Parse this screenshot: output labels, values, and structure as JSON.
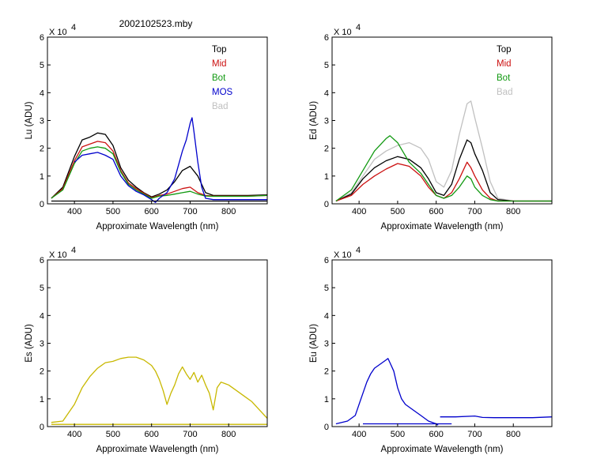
{
  "title": "2002102523.mby",
  "chart_data": [
    {
      "id": "lu",
      "type": "line",
      "ylabel": "Lu (ADU)",
      "xlabel": "Approximate Wavelength (nm)",
      "exponent_base": "X 10",
      "exponent_power": "4",
      "xlim": [
        330,
        900
      ],
      "ylim": [
        0,
        6
      ],
      "xticks": [
        "400",
        "500",
        "600",
        "700",
        "800"
      ],
      "yticks": [
        "0",
        "1",
        "2",
        "3",
        "4",
        "5",
        "6"
      ],
      "legend": [
        {
          "label": "Top",
          "color": "#000000"
        },
        {
          "label": "Mid",
          "color": "#cc1111"
        },
        {
          "label": "Bot",
          "color": "#119911"
        },
        {
          "label": "MOS",
          "color": "#0000cc"
        },
        {
          "label": "Bad",
          "color": "#c0c0c0"
        }
      ],
      "series": [
        {
          "name": "Top",
          "color": "#000000",
          "x": [
            340,
            370,
            400,
            420,
            440,
            460,
            480,
            500,
            520,
            540,
            560,
            580,
            600,
            620,
            640,
            660,
            680,
            700,
            720,
            740,
            760,
            800,
            850,
            900
          ],
          "y": [
            0.2,
            0.6,
            1.7,
            2.3,
            2.4,
            2.55,
            2.5,
            2.1,
            1.3,
            0.85,
            0.6,
            0.4,
            0.25,
            0.35,
            0.5,
            0.8,
            1.2,
            1.35,
            1.0,
            0.4,
            0.3,
            0.3,
            0.3,
            0.32
          ]
        },
        {
          "name": "Mid",
          "color": "#cc1111",
          "x": [
            340,
            370,
            400,
            420,
            440,
            460,
            480,
            500,
            520,
            540,
            560,
            580,
            600,
            620,
            640,
            660,
            680,
            700,
            720,
            740,
            760,
            800,
            850,
            900
          ],
          "y": [
            0.2,
            0.55,
            1.55,
            2.05,
            2.15,
            2.25,
            2.2,
            1.9,
            1.2,
            0.75,
            0.55,
            0.38,
            0.22,
            0.3,
            0.35,
            0.45,
            0.55,
            0.6,
            0.4,
            0.3,
            0.28,
            0.28,
            0.28,
            0.3
          ]
        },
        {
          "name": "Bot",
          "color": "#119911",
          "x": [
            340,
            370,
            400,
            420,
            440,
            460,
            480,
            500,
            520,
            540,
            560,
            580,
            600,
            620,
            640,
            660,
            680,
            700,
            720,
            740,
            760,
            800,
            850,
            900
          ],
          "y": [
            0.2,
            0.5,
            1.45,
            1.9,
            2.0,
            2.05,
            2.0,
            1.8,
            1.15,
            0.7,
            0.5,
            0.35,
            0.2,
            0.28,
            0.3,
            0.35,
            0.4,
            0.45,
            0.35,
            0.28,
            0.27,
            0.27,
            0.27,
            0.3
          ]
        },
        {
          "name": "MOS",
          "color": "#0000cc",
          "x": [
            400,
            420,
            440,
            460,
            480,
            500,
            520,
            540,
            560,
            580,
            600,
            610,
            620,
            640,
            660,
            670,
            680,
            690,
            700,
            705,
            710,
            720,
            730,
            740,
            760,
            800,
            850,
            900
          ],
          "y": [
            1.5,
            1.75,
            1.8,
            1.85,
            1.75,
            1.6,
            1.0,
            0.65,
            0.45,
            0.32,
            0.15,
            0.05,
            0.2,
            0.4,
            0.9,
            1.4,
            1.9,
            2.3,
            2.9,
            3.1,
            2.6,
            1.5,
            0.6,
            0.2,
            0.15,
            0.15,
            0.15,
            0.15
          ]
        },
        {
          "name": "Baseline",
          "color": "#000000",
          "x": [
            340,
            900
          ],
          "y": [
            0.1,
            0.1
          ]
        }
      ]
    },
    {
      "id": "ed",
      "type": "line",
      "ylabel": "Ed (ADU)",
      "xlabel": "Approximate Wavelength (nm)",
      "exponent_base": "X 10",
      "exponent_power": "4",
      "xlim": [
        330,
        900
      ],
      "ylim": [
        0,
        6
      ],
      "xticks": [
        "400",
        "500",
        "600",
        "700",
        "800"
      ],
      "yticks": [
        "0",
        "1",
        "2",
        "3",
        "4",
        "5",
        "6"
      ],
      "legend": [
        {
          "label": "Top",
          "color": "#000000"
        },
        {
          "label": "Mid",
          "color": "#cc1111"
        },
        {
          "label": "Bot",
          "color": "#119911"
        },
        {
          "label": "Bad",
          "color": "#c0c0c0"
        }
      ],
      "series": [
        {
          "name": "Bad",
          "color": "#c0c0c0",
          "x": [
            340,
            380,
            410,
            440,
            470,
            500,
            530,
            560,
            580,
            600,
            620,
            640,
            660,
            680,
            690,
            700,
            720,
            740,
            760,
            800,
            850,
            900
          ],
          "y": [
            0.1,
            0.4,
            1.0,
            1.6,
            1.9,
            2.1,
            2.2,
            2.0,
            1.6,
            0.8,
            0.6,
            1.2,
            2.5,
            3.6,
            3.7,
            3.1,
            2.0,
            0.8,
            0.2,
            0.1,
            0.1,
            0.1
          ]
        },
        {
          "name": "Top",
          "color": "#000000",
          "x": [
            340,
            380,
            410,
            440,
            470,
            500,
            530,
            560,
            580,
            600,
            620,
            640,
            660,
            680,
            690,
            700,
            720,
            740,
            760,
            800,
            850,
            900
          ],
          "y": [
            0.1,
            0.35,
            0.9,
            1.3,
            1.55,
            1.7,
            1.6,
            1.3,
            0.9,
            0.4,
            0.3,
            0.7,
            1.6,
            2.3,
            2.2,
            1.8,
            1.2,
            0.4,
            0.15,
            0.1,
            0.1,
            0.1
          ]
        },
        {
          "name": "Mid",
          "color": "#cc1111",
          "x": [
            340,
            380,
            410,
            440,
            470,
            500,
            530,
            560,
            580,
            600,
            620,
            640,
            660,
            680,
            690,
            700,
            720,
            740,
            760,
            800,
            850,
            900
          ],
          "y": [
            0.1,
            0.3,
            0.7,
            1.0,
            1.25,
            1.45,
            1.35,
            1.0,
            0.6,
            0.3,
            0.2,
            0.4,
            0.9,
            1.5,
            1.3,
            1.0,
            0.5,
            0.2,
            0.1,
            0.1,
            0.1,
            0.1
          ]
        },
        {
          "name": "Bot",
          "color": "#119911",
          "x": [
            340,
            380,
            410,
            440,
            470,
            480,
            500,
            530,
            560,
            580,
            600,
            620,
            640,
            660,
            680,
            690,
            700,
            720,
            740,
            760,
            800,
            850,
            900
          ],
          "y": [
            0.1,
            0.5,
            1.2,
            1.9,
            2.35,
            2.45,
            2.2,
            1.5,
            1.1,
            0.7,
            0.3,
            0.2,
            0.3,
            0.6,
            1.0,
            0.9,
            0.6,
            0.3,
            0.15,
            0.1,
            0.1,
            0.1,
            0.1
          ]
        }
      ]
    },
    {
      "id": "es",
      "type": "line",
      "ylabel": "Es (ADU)",
      "xlabel": "Approximate Wavelength (nm)",
      "exponent_base": "X 10",
      "exponent_power": "4",
      "xlim": [
        330,
        900
      ],
      "ylim": [
        0,
        6
      ],
      "xticks": [
        "400",
        "500",
        "600",
        "700",
        "800"
      ],
      "yticks": [
        "0",
        "1",
        "2",
        "3",
        "4",
        "5",
        "6"
      ],
      "legend": [],
      "series": [
        {
          "name": "Es",
          "color": "#c8b800",
          "x": [
            340,
            370,
            400,
            420,
            440,
            460,
            480,
            500,
            520,
            540,
            560,
            580,
            600,
            610,
            620,
            630,
            640,
            650,
            660,
            670,
            680,
            690,
            700,
            710,
            720,
            730,
            740,
            750,
            760,
            770,
            780,
            790,
            800,
            820,
            840,
            860,
            880,
            900
          ],
          "y": [
            0.15,
            0.2,
            0.8,
            1.4,
            1.8,
            2.1,
            2.3,
            2.35,
            2.45,
            2.5,
            2.5,
            2.4,
            2.2,
            2.0,
            1.7,
            1.3,
            0.8,
            1.2,
            1.5,
            1.9,
            2.15,
            1.9,
            1.7,
            1.95,
            1.6,
            1.85,
            1.5,
            1.2,
            0.6,
            1.4,
            1.6,
            1.55,
            1.5,
            1.3,
            1.1,
            0.9,
            0.6,
            0.3
          ]
        },
        {
          "name": "Baseline",
          "color": "#c8b800",
          "x": [
            340,
            900
          ],
          "y": [
            0.08,
            0.08
          ]
        }
      ]
    },
    {
      "id": "eu",
      "type": "line",
      "ylabel": "Eu (ADU)",
      "xlabel": "Approximate Wavelength (nm)",
      "exponent_base": "X 10",
      "exponent_power": "4",
      "xlim": [
        330,
        900
      ],
      "ylim": [
        0,
        6
      ],
      "xticks": [
        "400",
        "500",
        "600",
        "700",
        "800"
      ],
      "yticks": [
        "0",
        "1",
        "2",
        "3",
        "4",
        "5",
        "6"
      ],
      "legend": [],
      "series": [
        {
          "name": "Eu",
          "color": "#0000cc",
          "x": [
            340,
            370,
            390,
            400,
            410,
            420,
            430,
            440,
            450,
            460,
            470,
            475,
            480,
            490,
            500,
            510,
            520,
            540,
            560,
            580,
            600,
            605
          ],
          "y": [
            0.1,
            0.2,
            0.4,
            0.8,
            1.2,
            1.6,
            1.9,
            2.1,
            2.2,
            2.3,
            2.4,
            2.45,
            2.3,
            2.0,
            1.4,
            1.0,
            0.8,
            0.6,
            0.4,
            0.2,
            0.1,
            0.05
          ]
        },
        {
          "name": "Eu-red",
          "color": "#0000cc",
          "x": [
            610,
            650,
            700,
            720,
            750,
            800,
            850,
            900
          ],
          "y": [
            0.35,
            0.35,
            0.38,
            0.33,
            0.32,
            0.32,
            0.32,
            0.35
          ]
        },
        {
          "name": "Baseline",
          "color": "#0000cc",
          "x": [
            410,
            640
          ],
          "y": [
            0.1,
            0.1
          ]
        }
      ]
    }
  ]
}
